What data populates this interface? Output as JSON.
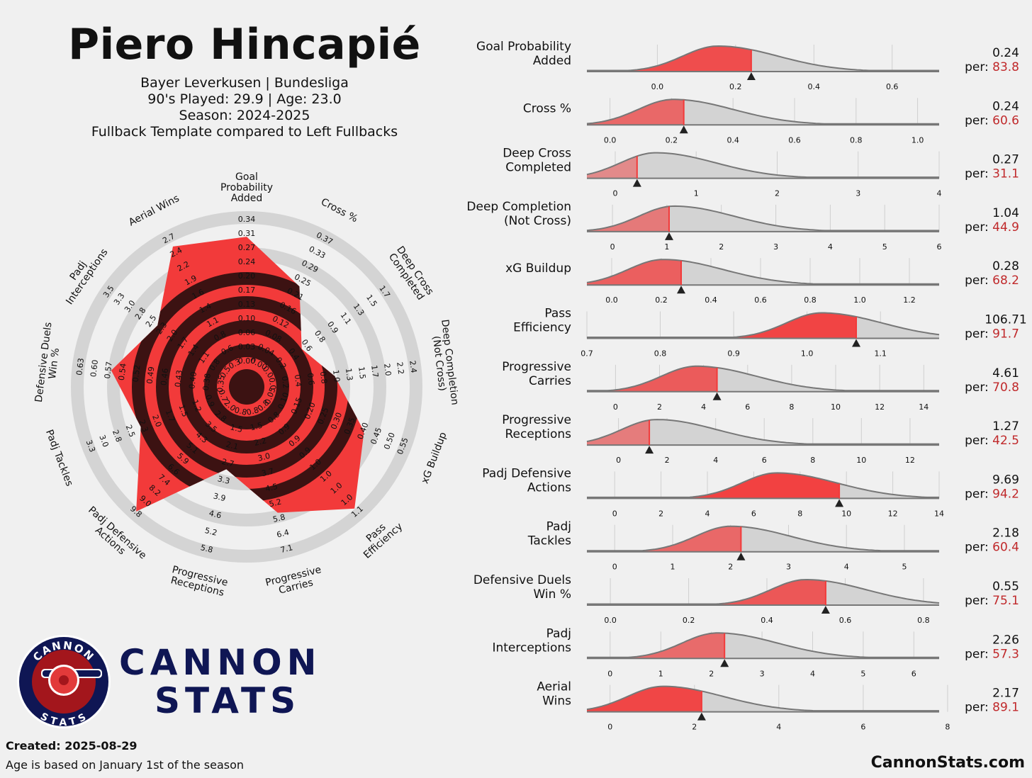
{
  "player": {
    "name": "Piero Hincapié",
    "club_line": "Bayer Leverkusen | Bundesliga",
    "played_line": "90's Played: 29.9 | Age: 23.0",
    "season_line": "Season: 2024-2025",
    "template_line": "Fullback Template compared to Left Fullbacks"
  },
  "brand": {
    "line1": "CANNON",
    "line2": "STATS",
    "badge_top": "CANNON",
    "badge_bottom": "STATS",
    "site": "CannonStats.com"
  },
  "footer": {
    "created": "Created: 2025-08-29",
    "age_note": "Age is based on January 1st of the season"
  },
  "per_label": "per:",
  "colors": {
    "background": "#f0f0f0",
    "accent_red": "#f23a3a",
    "dark_red": "#3c1212",
    "ring_grey": "#d4d4d4",
    "percentile_text": "#c0292b",
    "navy": "#0f1654"
  },
  "chart_data": [
    {
      "type": "radar",
      "title": "Fullback Template radar",
      "axes": [
        {
          "label": "Goal Probability Added",
          "ticks": [
            "0.00",
            "0.03",
            "0.06",
            "0.10",
            "0.13",
            "0.17",
            "0.20",
            "0.24",
            "0.27",
            "0.31",
            "0.34"
          ]
        },
        {
          "label": "Cross %",
          "ticks": [
            "0.00",
            "0.04",
            "0.08",
            "0.12",
            "0.16",
            "0.21",
            "0.25",
            "0.29",
            "0.33",
            "0.37"
          ]
        },
        {
          "label": "Deep Cross Completed",
          "ticks": [
            "0.0",
            "0.2",
            "0.4",
            "0.6",
            "0.8",
            "0.9",
            "1.1",
            "1.3",
            "1.5",
            "1.7"
          ]
        },
        {
          "label": "Deep Completion (Not Cross)",
          "ticks": [
            "0.0",
            "0.2",
            "0.4",
            "0.6",
            "0.8",
            "1.0",
            "1.3",
            "1.5",
            "1.7",
            "2.0",
            "2.2",
            "2.4"
          ]
        },
        {
          "label": "xG Buildup",
          "ticks": [
            "0.05",
            "0.10",
            "0.15",
            "0.20",
            "0.25",
            "0.30",
            "0.35",
            "0.40",
            "0.45",
            "0.50",
            "0.55"
          ]
        },
        {
          "label": "Pass Efficiency",
          "ticks": [
            "0.8",
            "0.8",
            "0.9",
            "0.9",
            "0.9",
            "1.0",
            "1.0",
            "1.0",
            "1.0",
            "1.1"
          ]
        },
        {
          "label": "Progressive Carries",
          "ticks": [
            "0.8",
            "1.5",
            "2.2",
            "3.0",
            "3.7",
            "4.5",
            "5.2",
            "5.8",
            "6.4",
            "7.1"
          ]
        },
        {
          "label": "Progressive Receptions",
          "ticks": [
            "0.8",
            "1.5",
            "2.1",
            "2.7",
            "3.3",
            "3.9",
            "4.6",
            "5.2",
            "5.8"
          ]
        },
        {
          "label": "Padj Defensive Actions",
          "ticks": [
            "2.0",
            "2.8",
            "3.5",
            "4.3",
            "5.1",
            "5.9",
            "6.6",
            "7.4",
            "8.2",
            "9.0",
            "9.8"
          ]
        },
        {
          "label": "Padj Tackles",
          "ticks": [
            "0.7",
            "0.9",
            "1.2",
            "1.5",
            "1.7",
            "2.0",
            "2.3",
            "2.5",
            "2.8",
            "3.0",
            "3.3"
          ]
        },
        {
          "label": "Defensive Duels Win %",
          "ticks": [
            "0.35",
            "0.38",
            "0.40",
            "0.43",
            "0.46",
            "0.49",
            "0.52",
            "0.54",
            "0.57",
            "0.60",
            "0.63"
          ]
        },
        {
          "label": "Padj Interceptions",
          "ticks": [
            "0.5",
            "0.8",
            "1.1",
            "1.4",
            "1.7",
            "2.0",
            "2.3",
            "2.5",
            "2.8",
            "3.0",
            "3.3",
            "3.5"
          ]
        },
        {
          "label": "Aerial Wins",
          "ticks": [
            "0.3",
            "0.6",
            "0.8",
            "1.1",
            "1.4",
            "1.6",
            "1.9",
            "2.2",
            "2.4",
            "2.7"
          ]
        }
      ],
      "percentiles": [
        83.8,
        60.6,
        31.1,
        44.9,
        68.2,
        91.7,
        70.8,
        42.5,
        94.2,
        60.4,
        75.1,
        57.3,
        89.1
      ]
    },
    {
      "type": "area",
      "title": "Metric distributions",
      "metrics": [
        {
          "label": [
            "Goal Probability",
            "Added"
          ],
          "value": "0.24",
          "percentile": "83.8",
          "marker": 0.24,
          "range": [
            -0.18,
            0.72
          ],
          "ticks": [
            "0.0",
            "0.2",
            "0.4",
            "0.6"
          ],
          "tick_values": [
            0.0,
            0.2,
            0.4,
            0.6
          ]
        },
        {
          "label": [
            "Cross %"
          ],
          "value": "0.24",
          "percentile": "60.6",
          "marker": 0.24,
          "range": [
            -0.075,
            1.07
          ],
          "ticks": [
            "0.0",
            "0.2",
            "0.4",
            "0.6",
            "0.8",
            "1.0"
          ],
          "tick_values": [
            0.0,
            0.2,
            0.4,
            0.6,
            0.8,
            1.0
          ]
        },
        {
          "label": [
            "Deep Cross",
            "Completed"
          ],
          "value": "0.27",
          "percentile": "31.1",
          "marker": 0.27,
          "range": [
            -0.35,
            4.0
          ],
          "ticks": [
            "0",
            "1",
            "2",
            "3",
            "4"
          ],
          "tick_values": [
            0,
            1,
            2,
            3,
            4
          ]
        },
        {
          "label": [
            "Deep Completion",
            "(Not Cross)"
          ],
          "value": "1.04",
          "percentile": "44.9",
          "marker": 1.04,
          "range": [
            -0.47,
            6.0
          ],
          "ticks": [
            "0",
            "1",
            "2",
            "3",
            "4",
            "5",
            "6"
          ],
          "tick_values": [
            0,
            1,
            2,
            3,
            4,
            5,
            6
          ]
        },
        {
          "label": [
            "xG Buildup"
          ],
          "value": "0.28",
          "percentile": "68.2",
          "marker": 0.28,
          "range": [
            -0.1,
            1.32
          ],
          "ticks": [
            "0.0",
            "0.2",
            "0.4",
            "0.6",
            "0.8",
            "1.0",
            "1.2"
          ],
          "tick_values": [
            0.0,
            0.2,
            0.4,
            0.6,
            0.8,
            1.0,
            1.2
          ]
        },
        {
          "label": [
            "Pass",
            "Efficiency"
          ],
          "value": "106.71",
          "percentile": "91.7",
          "marker": 1.067,
          "range": [
            0.7,
            1.18
          ],
          "ticks": [
            "0.7",
            "0.8",
            "0.9",
            "1.0",
            "1.1"
          ],
          "tick_values": [
            0.7,
            0.8,
            0.9,
            1.0,
            1.1
          ]
        },
        {
          "label": [
            "Progressive",
            "Carries"
          ],
          "value": "4.61",
          "percentile": "70.8",
          "marker": 4.61,
          "range": [
            -1.3,
            14.7
          ],
          "ticks": [
            "0",
            "2",
            "4",
            "6",
            "8",
            "10",
            "12",
            "14"
          ],
          "tick_values": [
            0,
            2,
            4,
            6,
            8,
            10,
            12,
            14
          ]
        },
        {
          "label": [
            "Progressive",
            "Receptions"
          ],
          "value": "1.27",
          "percentile": "42.5",
          "marker": 1.27,
          "range": [
            -1.3,
            13.2
          ],
          "ticks": [
            "0",
            "2",
            "4",
            "6",
            "8",
            "10",
            "12"
          ],
          "tick_values": [
            0,
            2,
            4,
            6,
            8,
            10,
            12
          ]
        },
        {
          "label": [
            "Padj Defensive",
            "Actions"
          ],
          "value": "9.69",
          "percentile": "94.2",
          "marker": 9.69,
          "range": [
            -1.2,
            14.0
          ],
          "ticks": [
            "0",
            "2",
            "4",
            "6",
            "8",
            "10",
            "12",
            "14"
          ],
          "tick_values": [
            0,
            2,
            4,
            6,
            8,
            10,
            12,
            14
          ]
        },
        {
          "label": [
            "Padj",
            "Tackles"
          ],
          "value": "2.18",
          "percentile": "60.4",
          "marker": 2.18,
          "range": [
            -0.48,
            5.6
          ],
          "ticks": [
            "0",
            "1",
            "2",
            "3",
            "4",
            "5"
          ],
          "tick_values": [
            0,
            1,
            2,
            3,
            4,
            5
          ]
        },
        {
          "label": [
            "Defensive Duels",
            "Win %"
          ],
          "value": "0.55",
          "percentile": "75.1",
          "marker": 0.55,
          "range": [
            -0.06,
            0.84
          ],
          "ticks": [
            "0.0",
            "0.2",
            "0.4",
            "0.6",
            "0.8"
          ],
          "tick_values": [
            0.0,
            0.2,
            0.4,
            0.6,
            0.8
          ]
        },
        {
          "label": [
            "Padj",
            "Interceptions"
          ],
          "value": "2.26",
          "percentile": "57.3",
          "marker": 2.26,
          "range": [
            -0.46,
            6.5
          ],
          "ticks": [
            "0",
            "1",
            "2",
            "3",
            "4",
            "5",
            "6"
          ],
          "tick_values": [
            0,
            1,
            2,
            3,
            4,
            5,
            6
          ]
        },
        {
          "label": [
            "Aerial",
            "Wins"
          ],
          "value": "2.17",
          "percentile": "89.1",
          "marker": 2.17,
          "range": [
            -0.55,
            7.8
          ],
          "ticks": [
            "0",
            "2",
            "4",
            "6",
            "8"
          ],
          "tick_values": [
            0,
            2,
            4,
            6,
            8
          ]
        }
      ]
    }
  ]
}
